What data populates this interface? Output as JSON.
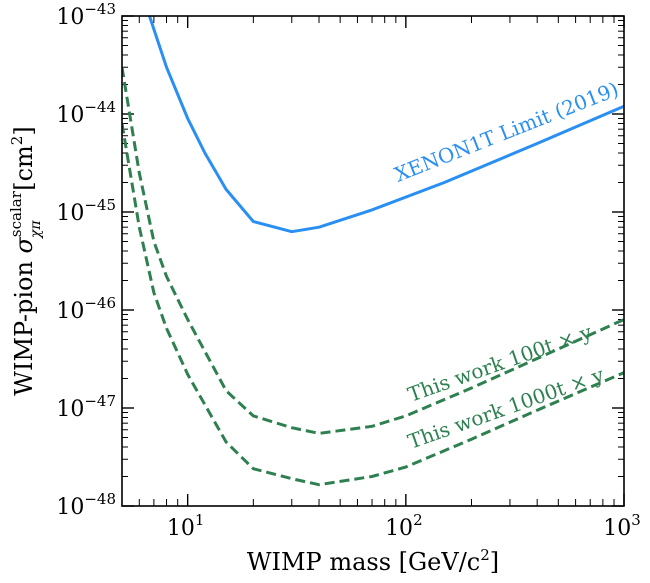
{
  "chart_data": {
    "type": "line",
    "xlabel": "WIMP mass [GeV/c²]",
    "xlabel_parts": {
      "main": "WIMP mass [GeV/c",
      "sup": "2",
      "tail": "]"
    },
    "ylabel_parts": {
      "main": "WIMP-pion ",
      "sigma": "σ",
      "sup": "scalar",
      "sub": "χπ",
      "unit": " [cm",
      "unit_sup": "2",
      "tail": "]"
    },
    "xscale": "log",
    "yscale": "log",
    "xlim": [
      5,
      1000
    ],
    "ylim": [
      1e-48,
      1e-43
    ],
    "x_ticks": [
      {
        "value": 10,
        "base": "10",
        "exp": "1"
      },
      {
        "value": 100,
        "base": "10",
        "exp": "2"
      },
      {
        "value": 1000,
        "base": "10",
        "exp": "3"
      }
    ],
    "y_ticks": [
      {
        "value": 1e-48,
        "base": "10",
        "exp": "−48"
      },
      {
        "value": 1e-47,
        "base": "10",
        "exp": "−47"
      },
      {
        "value": 1e-46,
        "base": "10",
        "exp": "−46"
      },
      {
        "value": 1e-45,
        "base": "10",
        "exp": "−45"
      },
      {
        "value": 1e-44,
        "base": "10",
        "exp": "−44"
      },
      {
        "value": 1e-43,
        "base": "10",
        "exp": "−43"
      }
    ],
    "grid": false,
    "series": [
      {
        "name": "XENON1T Limit (2019)",
        "color": "#2a8ff2",
        "style": "solid",
        "x": [
          6.5,
          8,
          10,
          12,
          15,
          20,
          30,
          40,
          70,
          150,
          400,
          1000
        ],
        "y": [
          1.2e-43,
          3e-44,
          9e-45,
          4e-45,
          1.7e-45,
          8e-46,
          6.3e-46,
          7e-46,
          1.05e-45,
          2e-45,
          5e-45,
          1.2e-44
        ]
      },
      {
        "name": "This work 100t × y",
        "color": "#2e8050",
        "style": "dashed",
        "x": [
          5,
          6,
          7,
          8,
          10,
          15,
          20,
          30,
          40,
          70,
          100,
          200,
          400,
          1000
        ],
        "y": [
          3e-44,
          2.5e-45,
          5e-46,
          2.2e-46,
          8e-47,
          1.5e-47,
          8.3e-48,
          6.3e-48,
          5.5e-48,
          6.5e-48,
          8.3e-48,
          1.6e-47,
          3.2e-47,
          8e-47
        ]
      },
      {
        "name": "This work 1000t × y",
        "color": "#2e8050",
        "style": "dashed",
        "x": [
          5,
          6,
          7,
          8,
          10,
          15,
          20,
          30,
          40,
          70,
          100,
          200,
          400,
          1000
        ],
        "y": [
          8e-45,
          7e-46,
          1.5e-46,
          6.5e-47,
          2.2e-47,
          4.5e-48,
          2.4e-48,
          1.9e-48,
          1.65e-48,
          2e-48,
          2.5e-48,
          4.8e-48,
          9.5e-48,
          2.3e-47
        ]
      }
    ]
  }
}
